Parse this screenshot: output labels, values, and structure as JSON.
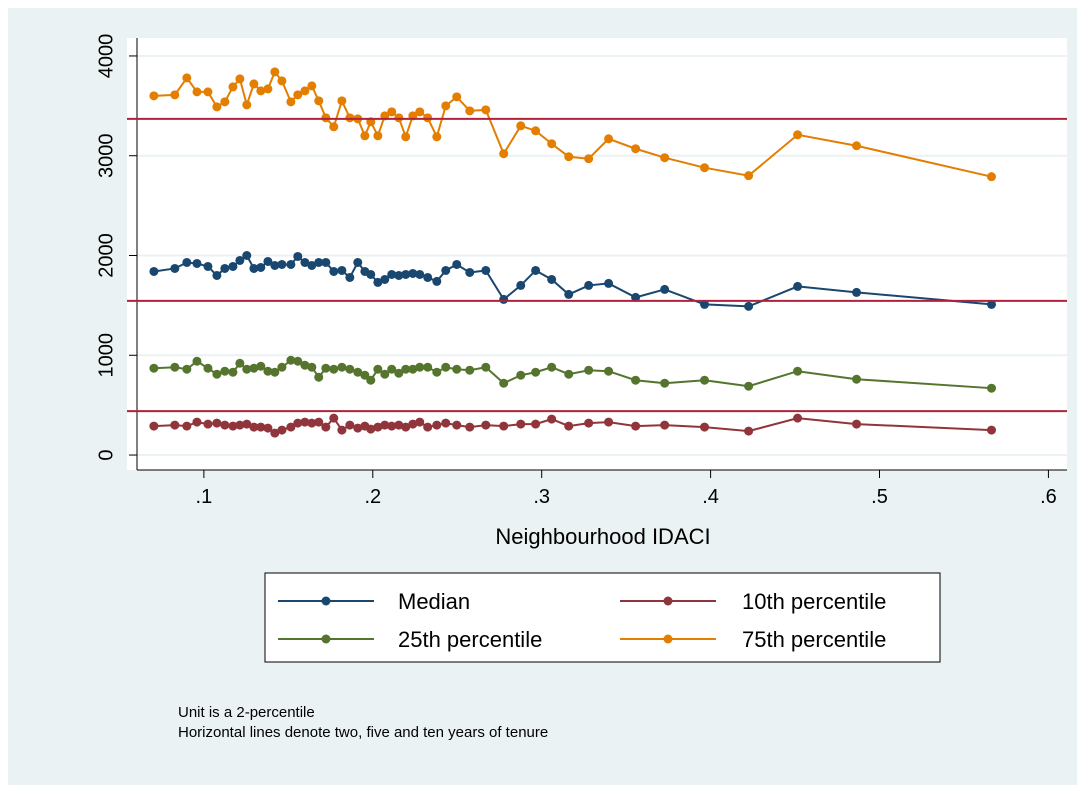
{
  "chart_data": {
    "type": "line",
    "x_label": "Neighbourhood IDACI",
    "x": [
      0.0704,
      0.0828,
      0.0899,
      0.0959,
      0.1024,
      0.1077,
      0.1124,
      0.1172,
      0.1213,
      0.1254,
      0.1296,
      0.1337,
      0.1379,
      0.142,
      0.1462,
      0.1515,
      0.1556,
      0.1598,
      0.1639,
      0.168,
      0.1722,
      0.1769,
      0.1817,
      0.1864,
      0.1911,
      0.1953,
      0.1988,
      0.203,
      0.2071,
      0.2112,
      0.2154,
      0.2195,
      0.2237,
      0.2278,
      0.2325,
      0.2379,
      0.2432,
      0.2497,
      0.2574,
      0.2669,
      0.2775,
      0.2876,
      0.2964,
      0.3059,
      0.316,
      0.3278,
      0.3396,
      0.3556,
      0.3728,
      0.3964,
      0.4225,
      0.4515,
      0.4864,
      0.5663
    ],
    "series": [
      {
        "name": "Median",
        "color": "#1a476f",
        "values": [
          1840,
          1870,
          1930,
          1920,
          1890,
          1800,
          1870,
          1890,
          1950,
          2000,
          1870,
          1880,
          1940,
          1900,
          1910,
          1910,
          1990,
          1930,
          1900,
          1930,
          1930,
          1840,
          1850,
          1780,
          1930,
          1840,
          1810,
          1730,
          1760,
          1810,
          1800,
          1810,
          1820,
          1810,
          1780,
          1740,
          1850,
          1910,
          1830,
          1850,
          1560,
          1700,
          1850,
          1760,
          1610,
          1700,
          1720,
          1580,
          1660,
          1510,
          1490,
          1690,
          1630,
          1510
        ]
      },
      {
        "name": "10th percentile",
        "color": "#90353b",
        "values": [
          290,
          300,
          290,
          330,
          310,
          320,
          300,
          290,
          300,
          310,
          280,
          280,
          270,
          220,
          250,
          280,
          320,
          330,
          320,
          330,
          280,
          370,
          250,
          300,
          270,
          290,
          260,
          280,
          300,
          290,
          300,
          280,
          310,
          330,
          280,
          300,
          320,
          300,
          280,
          300,
          290,
          310,
          310,
          360,
          290,
          320,
          330,
          290,
          300,
          280,
          240,
          370,
          310,
          250
        ]
      },
      {
        "name": "25th percentile",
        "color": "#55752f",
        "values": [
          870,
          880,
          860,
          940,
          870,
          810,
          840,
          830,
          920,
          860,
          870,
          890,
          840,
          830,
          880,
          950,
          940,
          900,
          880,
          780,
          870,
          860,
          880,
          860,
          830,
          800,
          750,
          860,
          810,
          860,
          820,
          860,
          860,
          880,
          880,
          830,
          880,
          860,
          850,
          880,
          720,
          800,
          830,
          880,
          810,
          850,
          840,
          750,
          720,
          750,
          690,
          840,
          760,
          670
        ]
      },
      {
        "name": "75th percentile",
        "color": "#e37e00",
        "values": [
          3600,
          3610,
          3780,
          3640,
          3640,
          3490,
          3540,
          3690,
          3770,
          3510,
          3720,
          3650,
          3670,
          3840,
          3750,
          3540,
          3610,
          3650,
          3700,
          3550,
          3380,
          3290,
          3550,
          3380,
          3370,
          3200,
          3340,
          3200,
          3400,
          3440,
          3380,
          3190,
          3400,
          3440,
          3380,
          3190,
          3500,
          3590,
          3450,
          3460,
          3020,
          3300,
          3250,
          3120,
          2990,
          2970,
          3170,
          3070,
          2980,
          2880,
          2800,
          3210,
          3100,
          2790
        ]
      }
    ],
    "reference_lines": [
      3370,
      1545,
      440
    ],
    "reference_color": "#b0223c",
    "xlim": [
      0.0604,
      0.611
    ],
    "ylim": [
      -150,
      4180
    ],
    "xticks": [
      {
        "value": 0.1,
        "label": ".1"
      },
      {
        "value": 0.2,
        "label": ".2"
      },
      {
        "value": 0.3,
        "label": ".3"
      },
      {
        "value": 0.4,
        "label": ".4"
      },
      {
        "value": 0.5,
        "label": ".5"
      },
      {
        "value": 0.6,
        "label": ".6"
      }
    ],
    "yticks": [
      0,
      1000,
      2000,
      3000,
      4000
    ],
    "grid": true,
    "legend": "bottom",
    "notes": [
      "Unit is a 2-percentile",
      "Horizontal lines denote two, five and ten years of tenure"
    ]
  }
}
